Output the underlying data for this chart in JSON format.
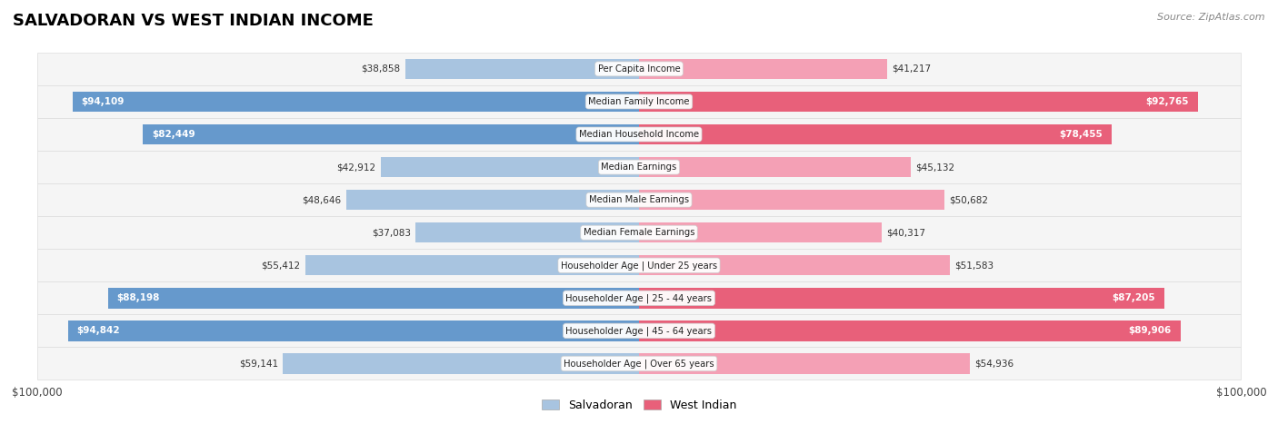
{
  "title": "SALVADORAN VS WEST INDIAN INCOME",
  "source": "Source: ZipAtlas.com",
  "categories": [
    "Per Capita Income",
    "Median Family Income",
    "Median Household Income",
    "Median Earnings",
    "Median Male Earnings",
    "Median Female Earnings",
    "Householder Age | Under 25 years",
    "Householder Age | 25 - 44 years",
    "Householder Age | 45 - 64 years",
    "Householder Age | Over 65 years"
  ],
  "salvadoran_values": [
    38858,
    94109,
    82449,
    42912,
    48646,
    37083,
    55412,
    88198,
    94842,
    59141
  ],
  "west_indian_values": [
    41217,
    92765,
    78455,
    45132,
    50682,
    40317,
    51583,
    87205,
    89906,
    54936
  ],
  "salvadoran_labels": [
    "$38,858",
    "$94,109",
    "$82,449",
    "$42,912",
    "$48,646",
    "$37,083",
    "$55,412",
    "$88,198",
    "$94,842",
    "$59,141"
  ],
  "west_indian_labels": [
    "$41,217",
    "$92,765",
    "$78,455",
    "$45,132",
    "$50,682",
    "$40,317",
    "$51,583",
    "$87,205",
    "$89,906",
    "$54,936"
  ],
  "max_value": 100000,
  "salvadoran_color_light": "#a8c4e0",
  "salvadoran_color_dark": "#6699cc",
  "west_indian_color_light": "#f4a0b5",
  "west_indian_color_dark": "#e8607a",
  "row_bg_color": "#f5f5f5",
  "row_border_color": "#dddddd",
  "background_color": "#ffffff",
  "legend_salvadoran": "Salvadoran",
  "legend_west_indian": "West Indian",
  "xlabel_left": "$100,000",
  "xlabel_right": "$100,000",
  "threshold": 0.75
}
